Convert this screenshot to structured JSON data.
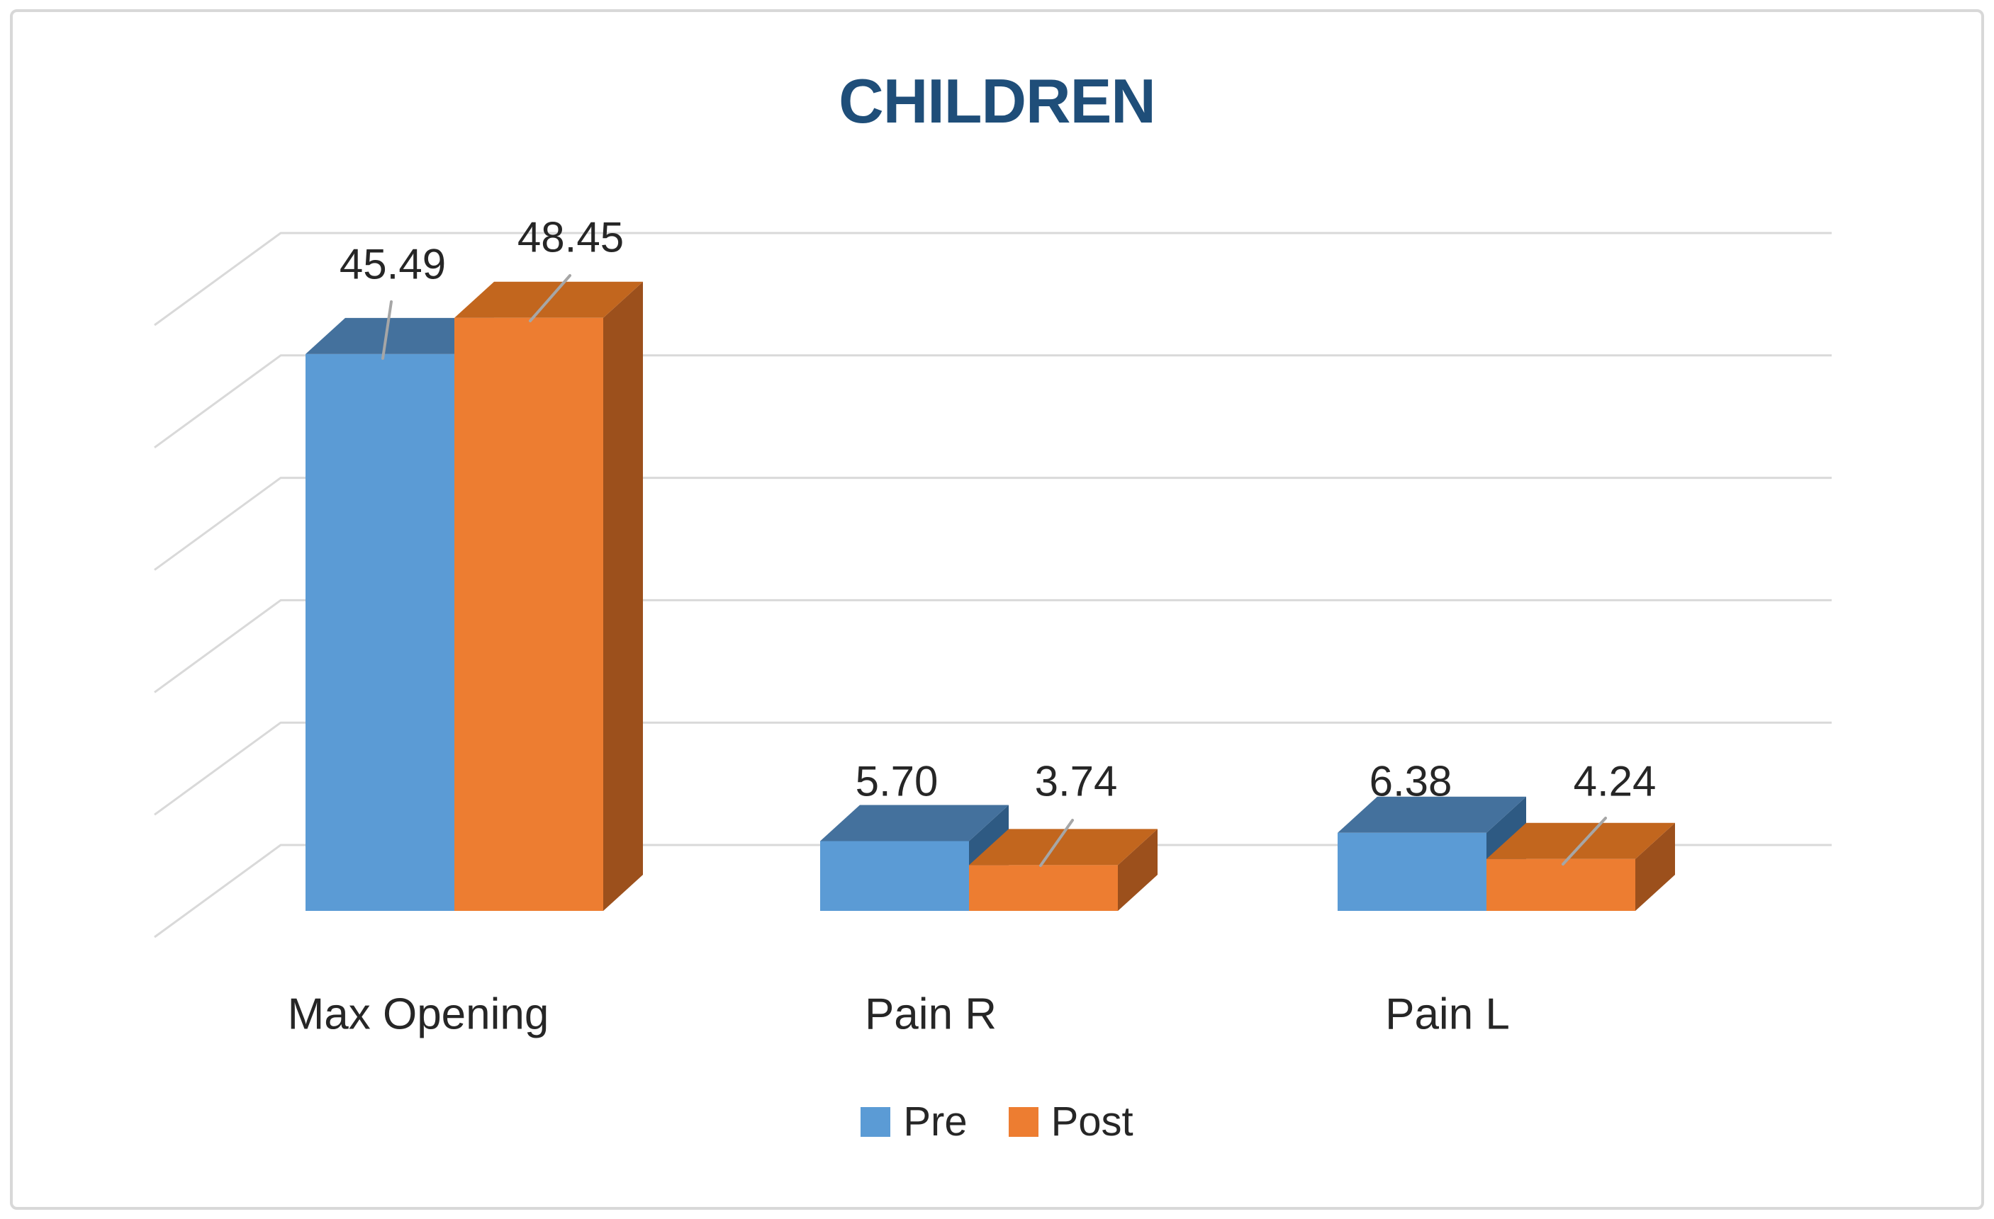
{
  "title": {
    "text": "CHILDREN",
    "color": "#1F4E79"
  },
  "chart_data": {
    "type": "bar",
    "variant": "3d-clustered-column",
    "title": "CHILDREN",
    "categories": [
      "Max Opening",
      "Pain R",
      "Pain L"
    ],
    "series": [
      {
        "name": "Pre",
        "color": "#5B9BD5",
        "top_color": "#44719D",
        "side_color": "#2E5A83",
        "values": [
          45.49,
          5.7,
          6.38
        ]
      },
      {
        "name": "Post",
        "color": "#ED7D31",
        "top_color": "#C2661E",
        "side_color": "#9C501C",
        "values": [
          48.45,
          3.74,
          4.24
        ]
      }
    ],
    "data_labels": [
      [
        "45.49",
        "5.70",
        "6.38"
      ],
      [
        "48.45",
        "3.74",
        "4.24"
      ]
    ],
    "xlabel": "",
    "ylabel": "",
    "ylim": [
      0,
      50
    ],
    "gridline_step": 10,
    "grid": true,
    "axis_tick_labels_visible": false,
    "legend_position": "bottom",
    "gridline_color": "#D9D9D9",
    "label_color": "#262626",
    "leader_line_color": "#A6A6A6",
    "border_color": "#D8D8D8",
    "background_color": "#FFFFFF"
  }
}
